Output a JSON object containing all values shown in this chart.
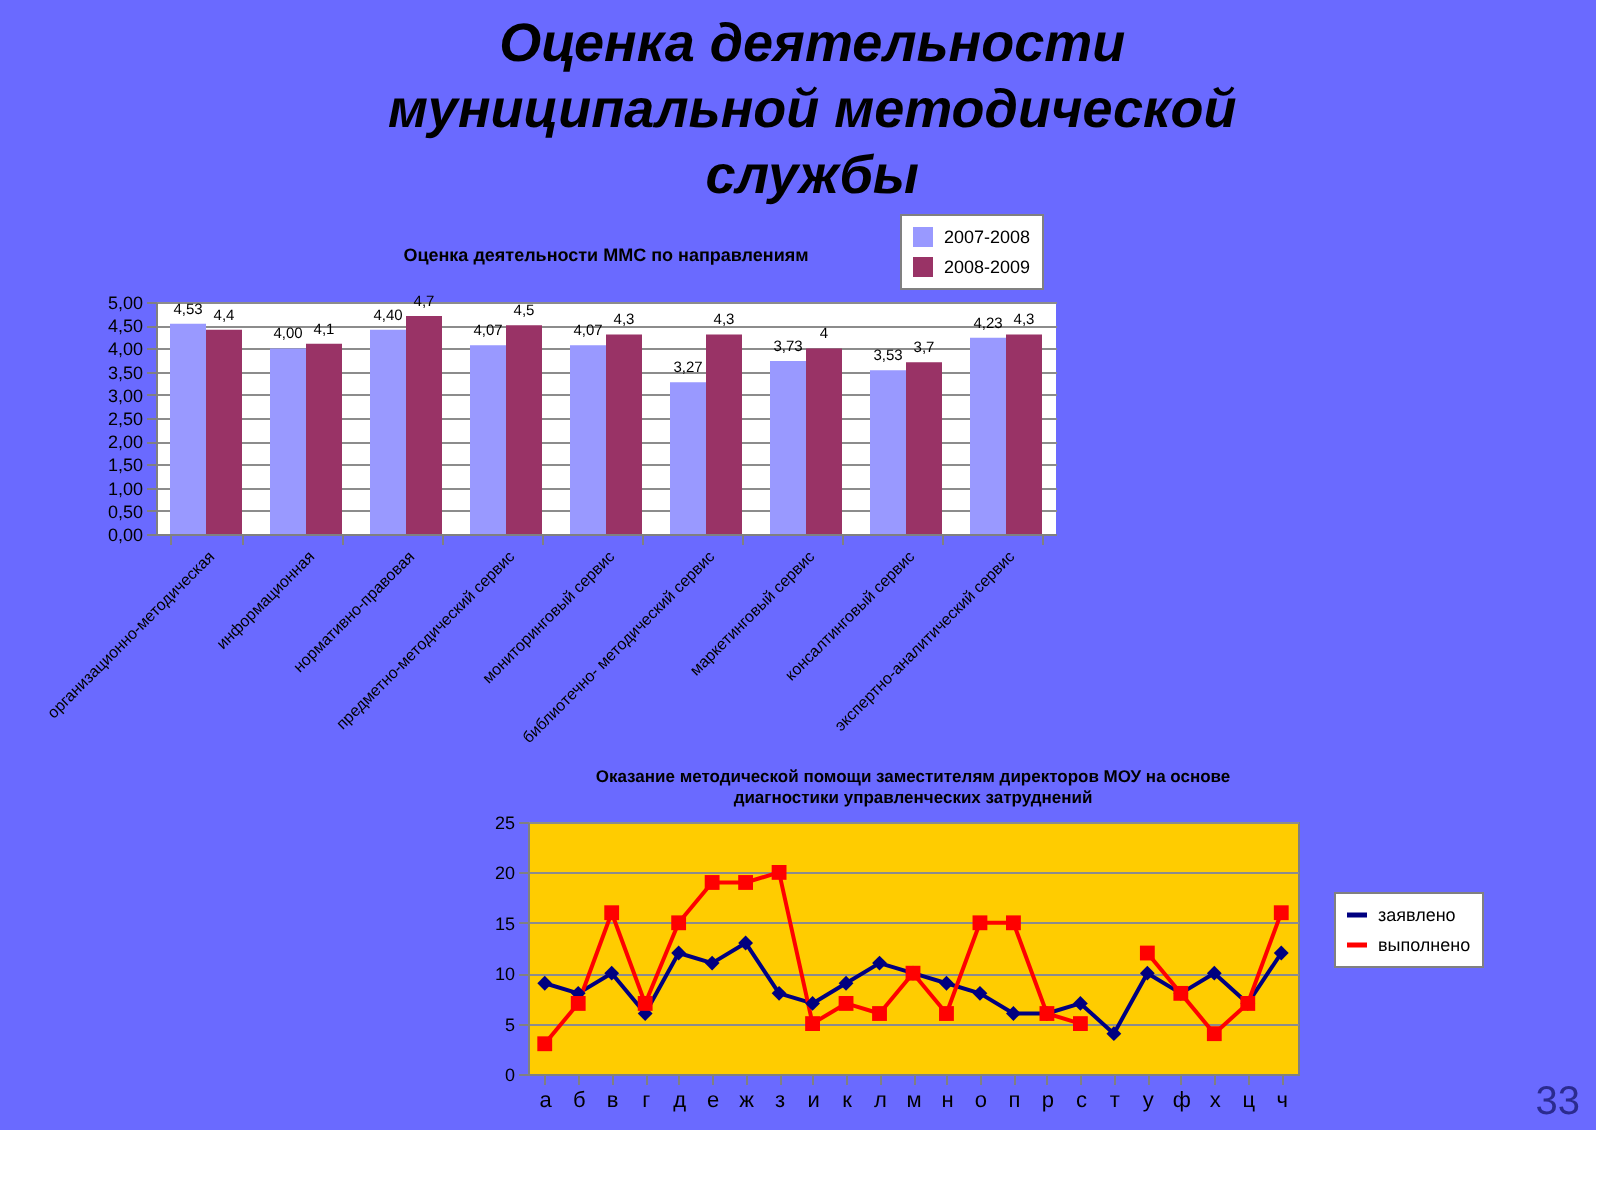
{
  "chart_data": [
    {
      "type": "other",
      "title": "Оценка деятельности муниципальной методической службы",
      "annotations": [
        "33"
      ]
    },
    {
      "type": "bar",
      "title": "Оценка деятельности ММС по направлениям",
      "categories": [
        "организационно-методическая",
        "информационная",
        "нормативно-правовая",
        "предметно-методический сервис",
        "мониторинговый сервис",
        "библиотечно- методический сервис",
        "маркетинговый сервис",
        "консалтинговый сервис",
        "экспертно-аналитический сервис"
      ],
      "series": [
        {
          "name": "2007-2008",
          "color": "#9999ff",
          "values": [
            4.53,
            4.0,
            4.4,
            4.07,
            4.07,
            3.27,
            3.73,
            3.53,
            4.23
          ],
          "value_labels": [
            "4,53",
            "4,00",
            "4,40",
            "4,07",
            "4,07",
            "3,27",
            "3,73",
            "3,53",
            "4,23"
          ]
        },
        {
          "name": "2008-2009",
          "color": "#993366",
          "values": [
            4.4,
            4.1,
            4.7,
            4.5,
            4.3,
            4.3,
            4,
            3.7,
            4.3
          ],
          "value_labels": [
            "4,4",
            "4,1",
            "4,7",
            "4,5",
            "4,3",
            "4,3",
            "4",
            "3,7",
            "4,3"
          ]
        }
      ],
      "ylim": [
        0,
        5
      ],
      "yticks": [
        {
          "value": 0,
          "label": "0,00"
        },
        {
          "value": 0.5,
          "label": "0,50"
        },
        {
          "value": 1,
          "label": "1,00"
        },
        {
          "value": 1.5,
          "label": "1,50"
        },
        {
          "value": 2,
          "label": "2,00"
        },
        {
          "value": 2.5,
          "label": "2,50"
        },
        {
          "value": 3,
          "label": "3,00"
        },
        {
          "value": 3.5,
          "label": "3,50"
        },
        {
          "value": 4,
          "label": "4,00"
        },
        {
          "value": 4.5,
          "label": "4,50"
        },
        {
          "value": 5,
          "label": "5,00"
        }
      ],
      "grid": "y",
      "legend": "top right"
    },
    {
      "type": "line",
      "title": "Оказание методической помощи заместителям директоров МОУ на основе диагностики управленческих затруднений",
      "categories": [
        "а",
        "б",
        "в",
        "г",
        "д",
        "е",
        "ж",
        "з",
        "и",
        "к",
        "л",
        "м",
        "н",
        "о",
        "п",
        "р",
        "с",
        "т",
        "у",
        "ф",
        "х",
        "ц",
        "ч"
      ],
      "series": [
        {
          "name": "заявлено",
          "color": "#000080",
          "marker": "diamond",
          "line_style": "solid",
          "values": [
            9,
            8,
            10,
            6,
            12,
            11,
            13,
            8,
            7,
            9,
            11,
            10,
            9,
            8,
            6,
            6,
            7,
            4,
            10,
            8,
            10,
            7,
            12
          ]
        },
        {
          "name": "выполнено",
          "color": "#ff0000",
          "marker": "square",
          "line_style": "solid",
          "values": [
            3,
            7,
            16,
            7,
            15,
            19,
            19,
            20,
            5,
            7,
            6,
            10,
            6,
            15,
            15,
            6,
            5,
            null,
            12,
            8,
            4,
            7,
            16
          ]
        }
      ],
      "ylim": [
        0,
        25
      ],
      "yticks": [
        0,
        5,
        10,
        15,
        20,
        25
      ],
      "grid": "y",
      "legend": "right"
    }
  ]
}
